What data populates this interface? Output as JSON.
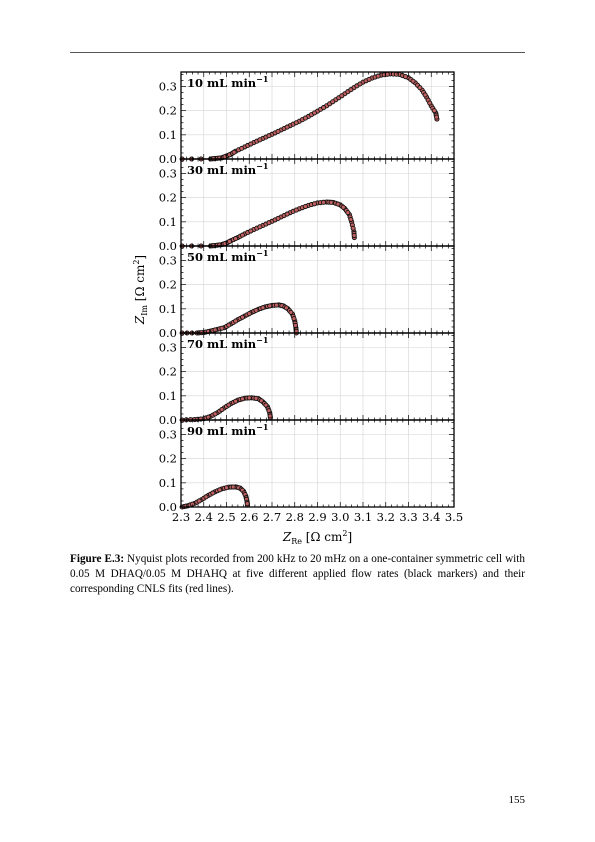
{
  "chart_data": {
    "type": "scatter",
    "layout": "vertically stacked panels sharing x axis",
    "xlabel_main": "Z",
    "xlabel_sub": "Re",
    "xlabel_unit": "[Ω cm",
    "xlabel_unit_close": "]",
    "ylabel_main": "Z",
    "ylabel_sub": "Im",
    "ylabel_unit": "[Ω cm",
    "ylabel_unit_close": "]",
    "unit_exponent": "2",
    "xlim": [
      2.3,
      3.5
    ],
    "ylim": [
      0.0,
      0.36
    ],
    "x_ticks": [
      "2.3",
      "2.4",
      "2.5",
      "2.6",
      "2.7",
      "2.8",
      "2.9",
      "3.0",
      "3.1",
      "3.2",
      "3.3",
      "3.4",
      "3.5"
    ],
    "y_ticks": [
      "0.0",
      "0.1",
      "0.2",
      "0.3"
    ],
    "grid": true,
    "marker_color": "#c06060",
    "marker_edge": "#111111",
    "fit_color": "#e06060",
    "panels": [
      {
        "label_num": "10",
        "label_unit": "mL min",
        "label_exp": "−1",
        "points": [
          [
            2.305,
            0.0
          ],
          [
            2.43,
            0.0
          ],
          [
            2.45,
            0.002
          ],
          [
            2.48,
            0.005
          ],
          [
            2.5,
            0.012
          ],
          [
            2.52,
            0.02
          ],
          [
            2.54,
            0.032
          ],
          [
            2.58,
            0.05
          ],
          [
            2.62,
            0.068
          ],
          [
            2.66,
            0.085
          ],
          [
            2.7,
            0.102
          ],
          [
            2.74,
            0.12
          ],
          [
            2.78,
            0.138
          ],
          [
            2.82,
            0.156
          ],
          [
            2.86,
            0.176
          ],
          [
            2.9,
            0.198
          ],
          [
            2.94,
            0.22
          ],
          [
            2.98,
            0.245
          ],
          [
            3.02,
            0.27
          ],
          [
            3.06,
            0.295
          ],
          [
            3.1,
            0.318
          ],
          [
            3.14,
            0.335
          ],
          [
            3.18,
            0.347
          ],
          [
            3.22,
            0.352
          ],
          [
            3.26,
            0.35
          ],
          [
            3.3,
            0.336
          ],
          [
            3.33,
            0.315
          ],
          [
            3.36,
            0.285
          ],
          [
            3.38,
            0.255
          ],
          [
            3.4,
            0.22
          ],
          [
            3.42,
            0.19
          ],
          [
            3.425,
            0.165
          ]
        ]
      },
      {
        "label_num": "30",
        "label_unit": "mL min",
        "label_exp": "−1",
        "points": [
          [
            2.305,
            0.0
          ],
          [
            2.43,
            0.0
          ],
          [
            2.45,
            0.002
          ],
          [
            2.48,
            0.006
          ],
          [
            2.5,
            0.012
          ],
          [
            2.52,
            0.022
          ],
          [
            2.55,
            0.035
          ],
          [
            2.58,
            0.05
          ],
          [
            2.62,
            0.068
          ],
          [
            2.66,
            0.085
          ],
          [
            2.7,
            0.102
          ],
          [
            2.74,
            0.12
          ],
          [
            2.78,
            0.138
          ],
          [
            2.82,
            0.154
          ],
          [
            2.86,
            0.168
          ],
          [
            2.9,
            0.178
          ],
          [
            2.94,
            0.182
          ],
          [
            2.97,
            0.18
          ],
          [
            3.0,
            0.17
          ],
          [
            3.02,
            0.155
          ],
          [
            3.04,
            0.13
          ],
          [
            3.05,
            0.1
          ],
          [
            3.06,
            0.06
          ],
          [
            3.062,
            0.035
          ]
        ]
      },
      {
        "label_num": "50",
        "label_unit": "mL min",
        "label_exp": "−1",
        "points": [
          [
            2.305,
            0.0
          ],
          [
            2.37,
            0.0
          ],
          [
            2.4,
            0.002
          ],
          [
            2.43,
            0.008
          ],
          [
            2.46,
            0.015
          ],
          [
            2.49,
            0.022
          ],
          [
            2.52,
            0.038
          ],
          [
            2.55,
            0.055
          ],
          [
            2.58,
            0.07
          ],
          [
            2.61,
            0.085
          ],
          [
            2.64,
            0.098
          ],
          [
            2.67,
            0.108
          ],
          [
            2.7,
            0.114
          ],
          [
            2.73,
            0.116
          ],
          [
            2.75,
            0.112
          ],
          [
            2.77,
            0.1
          ],
          [
            2.79,
            0.078
          ],
          [
            2.8,
            0.05
          ],
          [
            2.805,
            0.022
          ],
          [
            2.807,
            0.0
          ]
        ]
      },
      {
        "label_num": "70",
        "label_unit": "mL min",
        "label_exp": "−1",
        "points": [
          [
            2.305,
            0.0
          ],
          [
            2.36,
            0.002
          ],
          [
            2.4,
            0.005
          ],
          [
            2.43,
            0.015
          ],
          [
            2.46,
            0.03
          ],
          [
            2.49,
            0.05
          ],
          [
            2.52,
            0.068
          ],
          [
            2.55,
            0.082
          ],
          [
            2.58,
            0.09
          ],
          [
            2.61,
            0.092
          ],
          [
            2.64,
            0.088
          ],
          [
            2.66,
            0.075
          ],
          [
            2.68,
            0.055
          ],
          [
            2.69,
            0.03
          ],
          [
            2.693,
            0.01
          ]
        ]
      },
      {
        "label_num": "90",
        "label_unit": "mL min",
        "label_exp": "−1",
        "points": [
          [
            2.305,
            0.0
          ],
          [
            2.33,
            0.005
          ],
          [
            2.36,
            0.015
          ],
          [
            2.39,
            0.03
          ],
          [
            2.42,
            0.048
          ],
          [
            2.45,
            0.063
          ],
          [
            2.48,
            0.075
          ],
          [
            2.51,
            0.082
          ],
          [
            2.54,
            0.083
          ],
          [
            2.56,
            0.078
          ],
          [
            2.575,
            0.065
          ],
          [
            2.585,
            0.045
          ],
          [
            2.59,
            0.025
          ],
          [
            2.592,
            0.008
          ]
        ]
      }
    ]
  },
  "caption": {
    "label": "Figure E.3:",
    "text": " Nyquist plots recorded from 200 kHz to 20 mHz on a one-container symmetric cell with 0.05 M DHAQ/0.05 M DHAHQ at five different applied flow rates (black markers) and their corresponding CNLS fits (red lines)."
  },
  "page_number": "155"
}
